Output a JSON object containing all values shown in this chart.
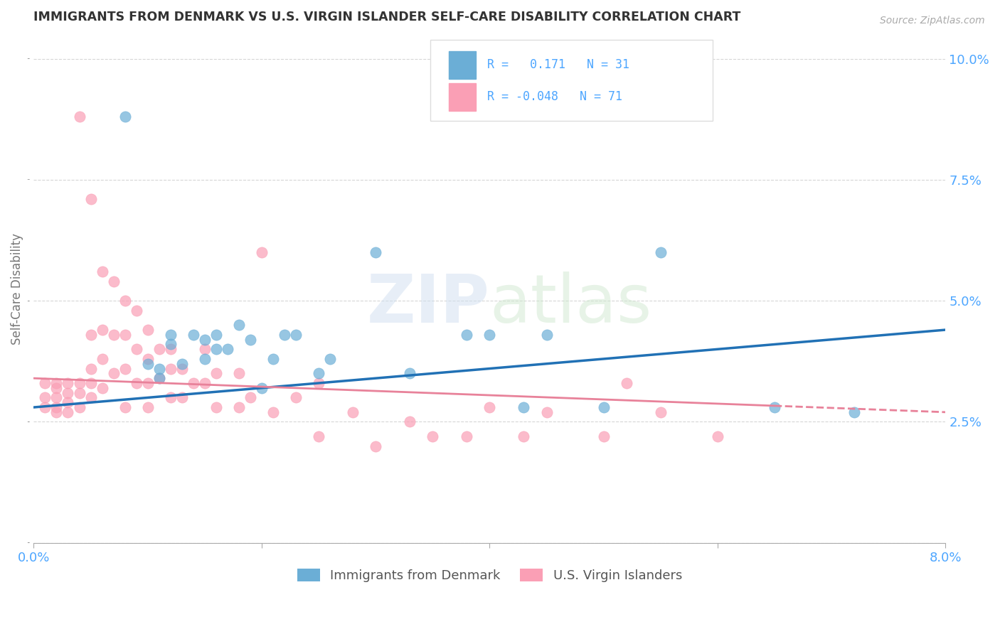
{
  "title": "IMMIGRANTS FROM DENMARK VS U.S. VIRGIN ISLANDER SELF-CARE DISABILITY CORRELATION CHART",
  "source": "Source: ZipAtlas.com",
  "ylabel": "Self-Care Disability",
  "xlim": [
    0.0,
    0.08
  ],
  "ylim": [
    0.0,
    0.105
  ],
  "xticks": [
    0.0,
    0.02,
    0.04,
    0.06,
    0.08
  ],
  "yticks": [
    0.0,
    0.025,
    0.05,
    0.075,
    0.1
  ],
  "blue_R": 0.171,
  "blue_N": 31,
  "pink_R": -0.048,
  "pink_N": 71,
  "blue_color": "#6baed6",
  "pink_color": "#fa9fb5",
  "blue_line_color": "#2171b5",
  "pink_line_color": "#e8829a",
  "background_color": "#ffffff",
  "grid_color": "#cccccc",
  "title_color": "#333333",
  "axis_label_color": "#4da6ff",
  "legend_blue_label": "Immigrants from Denmark",
  "legend_pink_label": "U.S. Virgin Islanders",
  "watermark": "ZIPatlas",
  "blue_scatter_x": [
    0.008,
    0.01,
    0.011,
    0.011,
    0.012,
    0.012,
    0.013,
    0.014,
    0.015,
    0.015,
    0.016,
    0.016,
    0.017,
    0.018,
    0.019,
    0.02,
    0.021,
    0.022,
    0.023,
    0.025,
    0.026,
    0.03,
    0.033,
    0.038,
    0.04,
    0.043,
    0.045,
    0.05,
    0.055,
    0.065,
    0.072
  ],
  "blue_scatter_y": [
    0.088,
    0.037,
    0.036,
    0.034,
    0.043,
    0.041,
    0.037,
    0.043,
    0.042,
    0.038,
    0.043,
    0.04,
    0.04,
    0.045,
    0.042,
    0.032,
    0.038,
    0.043,
    0.043,
    0.035,
    0.038,
    0.06,
    0.035,
    0.043,
    0.043,
    0.028,
    0.043,
    0.028,
    0.06,
    0.028,
    0.027
  ],
  "pink_scatter_x": [
    0.001,
    0.001,
    0.001,
    0.002,
    0.002,
    0.002,
    0.002,
    0.002,
    0.003,
    0.003,
    0.003,
    0.003,
    0.004,
    0.004,
    0.004,
    0.004,
    0.005,
    0.005,
    0.005,
    0.005,
    0.005,
    0.006,
    0.006,
    0.006,
    0.006,
    0.007,
    0.007,
    0.007,
    0.008,
    0.008,
    0.008,
    0.008,
    0.009,
    0.009,
    0.009,
    0.01,
    0.01,
    0.01,
    0.01,
    0.011,
    0.011,
    0.012,
    0.012,
    0.012,
    0.013,
    0.013,
    0.014,
    0.015,
    0.015,
    0.016,
    0.016,
    0.018,
    0.018,
    0.019,
    0.02,
    0.021,
    0.023,
    0.025,
    0.025,
    0.028,
    0.03,
    0.033,
    0.035,
    0.038,
    0.04,
    0.043,
    0.045,
    0.05,
    0.052,
    0.055,
    0.06
  ],
  "pink_scatter_y": [
    0.033,
    0.03,
    0.028,
    0.033,
    0.032,
    0.03,
    0.028,
    0.027,
    0.033,
    0.031,
    0.029,
    0.027,
    0.088,
    0.033,
    0.031,
    0.028,
    0.071,
    0.043,
    0.036,
    0.033,
    0.03,
    0.056,
    0.044,
    0.038,
    0.032,
    0.054,
    0.043,
    0.035,
    0.05,
    0.043,
    0.036,
    0.028,
    0.048,
    0.04,
    0.033,
    0.044,
    0.038,
    0.033,
    0.028,
    0.04,
    0.034,
    0.04,
    0.036,
    0.03,
    0.036,
    0.03,
    0.033,
    0.04,
    0.033,
    0.035,
    0.028,
    0.035,
    0.028,
    0.03,
    0.06,
    0.027,
    0.03,
    0.033,
    0.022,
    0.027,
    0.02,
    0.025,
    0.022,
    0.022,
    0.028,
    0.022,
    0.027,
    0.022,
    0.033,
    0.027,
    0.022
  ],
  "blue_trend_x0": 0.0,
  "blue_trend_y0": 0.028,
  "blue_trend_x1": 0.08,
  "blue_trend_y1": 0.044,
  "pink_trend_x0": 0.0,
  "pink_trend_y0": 0.034,
  "pink_trend_x1": 0.08,
  "pink_trend_y1": 0.027
}
